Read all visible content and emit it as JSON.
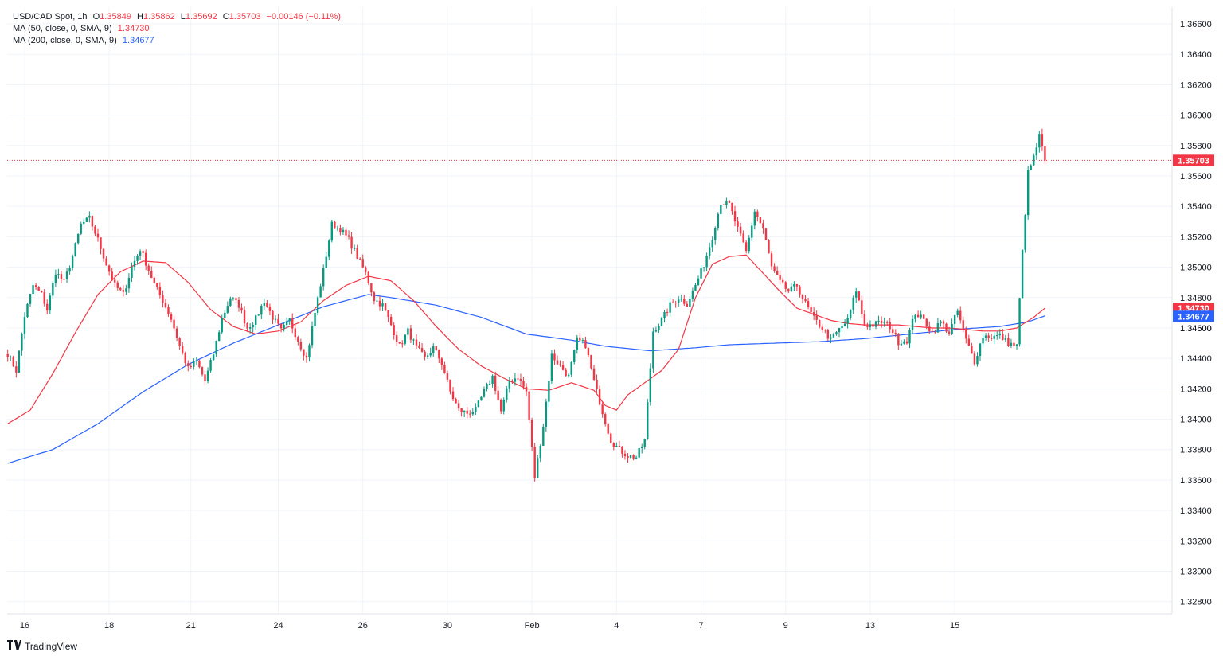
{
  "legend": {
    "symbol": "USD/CAD Spot, 1h",
    "ohlc": {
      "O": "1.35849",
      "H": "1.35862",
      "L": "1.35692",
      "C": "1.35703",
      "chg": "−0.00146 (−0.11%)"
    },
    "ma50_label": "MA (50, close, 0, SMA, 9)",
    "ma50_value": "1.34730",
    "ma200_label": "MA (200, close, 0, SMA, 9)",
    "ma200_value": "1.34677"
  },
  "colors": {
    "up": "#089981",
    "down": "#f23645",
    "ma50": "#f23645",
    "ma200": "#2962ff",
    "grid": "#f0f3fa",
    "text": "#131722"
  },
  "branding": "TradingView",
  "chart_data": {
    "type": "candlestick",
    "title": "USD/CAD Spot, 1h",
    "x_tick_labels": [
      "16",
      "18",
      "21",
      "24",
      "26",
      "30",
      "Feb",
      "4",
      "7",
      "9",
      "13",
      "15"
    ],
    "y_tick_labels": [
      "1.36600",
      "1.36400",
      "1.36200",
      "1.36000",
      "1.35800",
      "1.35600",
      "1.35400",
      "1.35200",
      "1.35000",
      "1.34800",
      "1.34600",
      "1.34400",
      "1.34200",
      "1.34000",
      "1.33800",
      "1.33600",
      "1.33400",
      "1.33200",
      "1.33000",
      "1.32800"
    ],
    "ylim": [
      1.3272,
      1.3671
    ],
    "grid": true,
    "price_labels": [
      {
        "name": "last",
        "value": 1.35703,
        "text": "1.35703",
        "color": "#f23645"
      },
      {
        "name": "ma50",
        "value": 1.3473,
        "text": "1.34730",
        "color": "#f23645"
      },
      {
        "name": "ma200",
        "value": 1.34677,
        "text": "1.34677",
        "color": "#2962ff"
      }
    ],
    "partial_tick_label": {
      "value": 1.346,
      "text": "1.34600"
    },
    "last_close": 1.35703,
    "close_path": [
      [
        0,
        1.3443
      ],
      [
        3,
        1.3432
      ],
      [
        6,
        1.3468
      ],
      [
        9,
        1.3488
      ],
      [
        12,
        1.3482
      ],
      [
        14,
        1.3472
      ],
      [
        17,
        1.3497
      ],
      [
        20,
        1.349
      ],
      [
        23,
        1.3507
      ],
      [
        26,
        1.3528
      ],
      [
        29,
        1.3532
      ],
      [
        32,
        1.3518
      ],
      [
        35,
        1.3502
      ],
      [
        38,
        1.3488
      ],
      [
        41,
        1.3482
      ],
      [
        44,
        1.35
      ],
      [
        47,
        1.3512
      ],
      [
        49,
        1.3503
      ],
      [
        52,
        1.3489
      ],
      [
        55,
        1.3478
      ],
      [
        58,
        1.3466
      ],
      [
        61,
        1.3448
      ],
      [
        64,
        1.3433
      ],
      [
        67,
        1.3438
      ],
      [
        70,
        1.3425
      ],
      [
        73,
        1.3443
      ],
      [
        76,
        1.3466
      ],
      [
        79,
        1.348
      ],
      [
        82,
        1.3475
      ],
      [
        85,
        1.346
      ],
      [
        88,
        1.3466
      ],
      [
        91,
        1.3478
      ],
      [
        94,
        1.3467
      ],
      [
        97,
        1.3458
      ],
      [
        100,
        1.3465
      ],
      [
        103,
        1.3452
      ],
      [
        106,
        1.344
      ],
      [
        109,
        1.347
      ],
      [
        112,
        1.3498
      ],
      [
        115,
        1.3528
      ],
      [
        118,
        1.3525
      ],
      [
        121,
        1.3518
      ],
      [
        124,
        1.3507
      ],
      [
        127,
        1.3496
      ],
      [
        130,
        1.3479
      ],
      [
        133,
        1.3475
      ],
      [
        136,
        1.3462
      ],
      [
        139,
        1.3448
      ],
      [
        142,
        1.3458
      ],
      [
        145,
        1.3447
      ],
      [
        148,
        1.344
      ],
      [
        151,
        1.3447
      ],
      [
        154,
        1.3437
      ],
      [
        157,
        1.3418
      ],
      [
        160,
        1.3406
      ],
      [
        163,
        1.3404
      ],
      [
        166,
        1.3406
      ],
      [
        169,
        1.3418
      ],
      [
        172,
        1.3428
      ],
      [
        175,
        1.3405
      ],
      [
        178,
        1.3425
      ],
      [
        181,
        1.3428
      ],
      [
        184,
        1.3418
      ],
      [
        187,
        1.3362
      ],
      [
        190,
        1.3396
      ],
      [
        193,
        1.3442
      ],
      [
        196,
        1.3435
      ],
      [
        199,
        1.3428
      ],
      [
        202,
        1.3452
      ],
      [
        205,
        1.3449
      ],
      [
        208,
        1.3425
      ],
      [
        211,
        1.3405
      ],
      [
        214,
        1.3386
      ],
      [
        217,
        1.338
      ],
      [
        220,
        1.3376
      ],
      [
        223,
        1.3375
      ],
      [
        226,
        1.3386
      ],
      [
        229,
        1.3458
      ],
      [
        232,
        1.3465
      ],
      [
        235,
        1.3475
      ],
      [
        238,
        1.348
      ],
      [
        241,
        1.3476
      ],
      [
        244,
        1.3488
      ],
      [
        247,
        1.3502
      ],
      [
        250,
        1.352
      ],
      [
        253,
        1.3543
      ],
      [
        256,
        1.3541
      ],
      [
        259,
        1.3525
      ],
      [
        262,
        1.351
      ],
      [
        265,
        1.3537
      ],
      [
        268,
        1.3525
      ],
      [
        271,
        1.35
      ],
      [
        274,
        1.349
      ],
      [
        277,
        1.3484
      ],
      [
        280,
        1.3488
      ],
      [
        283,
        1.3476
      ],
      [
        286,
        1.3466
      ],
      [
        289,
        1.346
      ],
      [
        292,
        1.3452
      ],
      [
        295,
        1.3459
      ],
      [
        298,
        1.3465
      ],
      [
        301,
        1.3485
      ],
      [
        304,
        1.3462
      ],
      [
        307,
        1.3462
      ],
      [
        310,
        1.3464
      ],
      [
        313,
        1.3461
      ],
      [
        316,
        1.3451
      ],
      [
        319,
        1.3452
      ],
      [
        322,
        1.347
      ],
      [
        325,
        1.3465
      ],
      [
        328,
        1.3457
      ],
      [
        331,
        1.3464
      ],
      [
        334,
        1.3457
      ],
      [
        337,
        1.3471
      ],
      [
        340,
        1.3452
      ],
      [
        343,
        1.3438
      ],
      [
        346,
        1.3455
      ],
      [
        349,
        1.3454
      ],
      [
        352,
        1.3455
      ],
      [
        355,
        1.345
      ],
      [
        358,
        1.3448
      ],
      [
        360,
        1.351
      ],
      [
        362,
        1.3562
      ],
      [
        364,
        1.3572
      ],
      [
        366,
        1.3586
      ],
      [
        368,
        1.357
      ]
    ],
    "ma50_path": [
      [
        0,
        1.3397
      ],
      [
        8,
        1.3406
      ],
      [
        16,
        1.343
      ],
      [
        24,
        1.3457
      ],
      [
        32,
        1.3482
      ],
      [
        40,
        1.3497
      ],
      [
        48,
        1.3504
      ],
      [
        56,
        1.3503
      ],
      [
        64,
        1.349
      ],
      [
        72,
        1.3472
      ],
      [
        80,
        1.3461
      ],
      [
        88,
        1.3456
      ],
      [
        96,
        1.3458
      ],
      [
        104,
        1.3464
      ],
      [
        112,
        1.3478
      ],
      [
        120,
        1.3488
      ],
      [
        128,
        1.3494
      ],
      [
        136,
        1.3491
      ],
      [
        144,
        1.3478
      ],
      [
        152,
        1.3461
      ],
      [
        160,
        1.3446
      ],
      [
        168,
        1.3435
      ],
      [
        176,
        1.3427
      ],
      [
        184,
        1.342
      ],
      [
        192,
        1.3419
      ],
      [
        200,
        1.3424
      ],
      [
        208,
        1.3419
      ],
      [
        212,
        1.3409
      ],
      [
        216,
        1.3406
      ],
      [
        220,
        1.3416
      ],
      [
        226,
        1.3424
      ],
      [
        232,
        1.3432
      ],
      [
        238,
        1.3446
      ],
      [
        244,
        1.348
      ],
      [
        250,
        1.3502
      ],
      [
        256,
        1.3507
      ],
      [
        262,
        1.3508
      ],
      [
        268,
        1.3496
      ],
      [
        274,
        1.3484
      ],
      [
        280,
        1.3473
      ],
      [
        286,
        1.3469
      ],
      [
        292,
        1.3465
      ],
      [
        298,
        1.3463
      ],
      [
        304,
        1.3462
      ],
      [
        310,
        1.3462
      ],
      [
        316,
        1.3462
      ],
      [
        322,
        1.3461
      ],
      [
        328,
        1.346
      ],
      [
        334,
        1.346
      ],
      [
        340,
        1.3459
      ],
      [
        346,
        1.3458
      ],
      [
        352,
        1.3458
      ],
      [
        358,
        1.346
      ],
      [
        364,
        1.3467
      ],
      [
        368,
        1.3473
      ]
    ],
    "ma200_path": [
      [
        0,
        1.3371
      ],
      [
        16,
        1.338
      ],
      [
        32,
        1.3397
      ],
      [
        48,
        1.3418
      ],
      [
        64,
        1.3436
      ],
      [
        80,
        1.345
      ],
      [
        96,
        1.3462
      ],
      [
        112,
        1.3474
      ],
      [
        128,
        1.3482
      ],
      [
        136,
        1.348
      ],
      [
        152,
        1.3475
      ],
      [
        168,
        1.3467
      ],
      [
        184,
        1.3456
      ],
      [
        200,
        1.3452
      ],
      [
        212,
        1.3448
      ],
      [
        228,
        1.3445
      ],
      [
        244,
        1.3447
      ],
      [
        256,
        1.3449
      ],
      [
        272,
        1.345
      ],
      [
        288,
        1.3451
      ],
      [
        304,
        1.3453
      ],
      [
        320,
        1.3456
      ],
      [
        336,
        1.3459
      ],
      [
        352,
        1.3461
      ],
      [
        362,
        1.3464
      ],
      [
        368,
        1.3468
      ]
    ],
    "candle_count": 369,
    "x_tick_bar_index": [
      6,
      36,
      65,
      96,
      126,
      156,
      186,
      216,
      246,
      276,
      306,
      336
    ]
  }
}
